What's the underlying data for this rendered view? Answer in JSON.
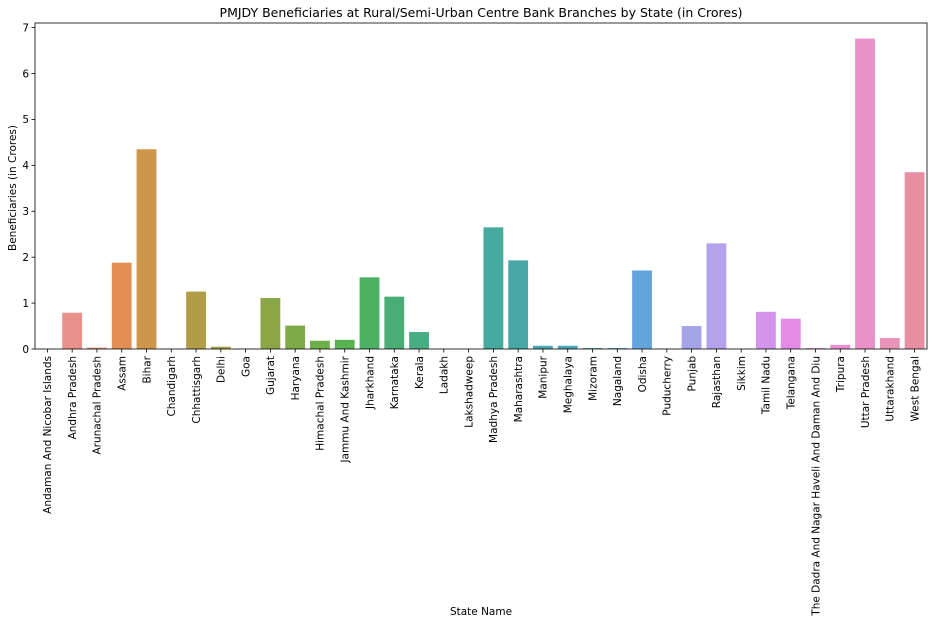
{
  "chart_data": {
    "type": "bar",
    "title": "PMJDY Beneficiaries at Rural/Semi-Urban Centre Bank Branches by State (in Crores)",
    "xlabel": "State Name",
    "ylabel": "Beneficiaries (in Crores)",
    "ylim": [
      0,
      7.1
    ],
    "yticks": [
      "0",
      "1",
      "2",
      "3",
      "4",
      "5",
      "6",
      "7"
    ],
    "grid": false,
    "categories": [
      "Andaman And Nicobar Islands",
      "Andhra Pradesh",
      "Arunachal Pradesh",
      "Assam",
      "Bihar",
      "Chandigarh",
      "Chhattisgarh",
      "Delhi",
      "Goa",
      "Gujarat",
      "Haryana",
      "Himachal Pradesh",
      "Jammu And Kashmir",
      "Jharkhand",
      "Karnataka",
      "Kerala",
      "Ladakh",
      "Lakshadweep",
      "Madhya Pradesh",
      "Maharashtra",
      "Manipur",
      "Meghalaya",
      "Mizoram",
      "Nagaland",
      "Odisha",
      "Puducherry",
      "Punjab",
      "Rajasthan",
      "Sikkim",
      "Tamil Nadu",
      "Telangana",
      "The Dadra And Nagar Haveli And Daman And Diu",
      "Tripura",
      "Uttar Pradesh",
      "Uttarakhand",
      "West Bengal"
    ],
    "values": [
      0.004,
      0.79,
      0.03,
      1.88,
      4.35,
      0.005,
      1.25,
      0.05,
      0.01,
      1.11,
      0.51,
      0.18,
      0.2,
      1.56,
      1.14,
      0.37,
      0.004,
      0.003,
      2.65,
      1.93,
      0.07,
      0.07,
      0.02,
      0.02,
      1.71,
      0.01,
      0.5,
      2.3,
      0.01,
      0.81,
      0.66,
      0.02,
      0.09,
      6.76,
      0.24,
      3.85
    ],
    "colors": [
      "#f17c7b",
      "#e8908b",
      "#e58e72",
      "#e38e54",
      "#cd9649",
      "#be9d48",
      "#b09e47",
      "#a3a346",
      "#97a446",
      "#8aa646",
      "#7eaa47",
      "#6daf48",
      "#58b24f",
      "#4bb061",
      "#49ae75",
      "#48ad82",
      "#47ac8c",
      "#47ab94",
      "#47aa9e",
      "#48a8a7",
      "#48a7af",
      "#4aa6b7",
      "#4da4c2",
      "#55a0cf",
      "#64a4dd",
      "#88a2e0",
      "#a5a4e8",
      "#b4a2ec",
      "#c49cec",
      "#d594ec",
      "#e48be6",
      "#e88ddb",
      "#ea8fd2",
      "#e992c8",
      "#e894b8",
      "#e88ea3"
    ]
  }
}
